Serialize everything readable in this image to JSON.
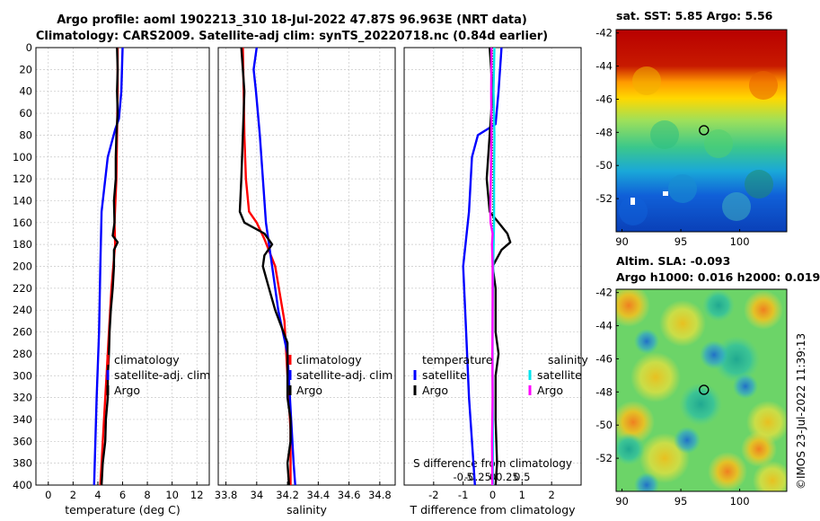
{
  "header": {
    "title_line1": "Argo profile: aoml 1902213_310 18-Jul-2022 47.87S 96.963E (NRT data)",
    "title_line2": "Climatology: CARS2009. Satellite-adj clim: synTS_20220718.nc (0.84d earlier)"
  },
  "maps": {
    "sst_title": "sat. SST: 5.85 Argo: 5.56",
    "sla_title1": "Altim. SLA: -0.093",
    "sla_title2": "Argo h1000: 0.016 h2000: 0.019",
    "stamp": "©IMOS 23-Jul-2022 11:39:13",
    "x_ticks": [
      "90",
      "95",
      "100"
    ],
    "y_ticks": [
      "-42",
      "-44",
      "-46",
      "-48",
      "-50",
      "-52"
    ],
    "marker_lon": 96.963,
    "marker_lat": -47.87
  },
  "chart_data": [
    {
      "type": "line",
      "panel": "temperature",
      "xlabel": "temperature (deg C)",
      "ylabel": "",
      "xlim": [
        -1,
        13
      ],
      "ylim": [
        400,
        0
      ],
      "x_ticks": [
        "0",
        "2",
        "4",
        "6",
        "8",
        "10",
        "12"
      ],
      "y_ticks": [
        "0",
        "20",
        "40",
        "60",
        "80",
        "100",
        "120",
        "140",
        "160",
        "180",
        "200",
        "220",
        "240",
        "260",
        "280",
        "300",
        "320",
        "340",
        "360",
        "380",
        "400"
      ],
      "grid": true,
      "legend": [
        "climatology",
        "satellite-adj. clim",
        "Argo"
      ],
      "series": [
        {
          "name": "climatology",
          "color": "#ff0000",
          "points": [
            [
              5.6,
              0
            ],
            [
              5.6,
              40
            ],
            [
              5.55,
              80
            ],
            [
              5.5,
              120
            ],
            [
              5.35,
              160
            ],
            [
              5.4,
              180
            ],
            [
              5.1,
              220
            ],
            [
              4.9,
              260
            ],
            [
              4.7,
              300
            ],
            [
              4.5,
              340
            ],
            [
              4.3,
              380
            ],
            [
              4.2,
              400
            ]
          ]
        },
        {
          "name": "satellite-adj. clim",
          "color": "#0000ff",
          "points": [
            [
              6.0,
              0
            ],
            [
              5.9,
              40
            ],
            [
              5.7,
              65
            ],
            [
              5.4,
              75
            ],
            [
              4.8,
              100
            ],
            [
              4.3,
              150
            ],
            [
              4.2,
              200
            ],
            [
              4.1,
              260
            ],
            [
              3.9,
              320
            ],
            [
              3.8,
              360
            ],
            [
              3.7,
              400
            ]
          ]
        },
        {
          "name": "Argo",
          "color": "#000000",
          "points": [
            [
              5.55,
              0
            ],
            [
              5.6,
              20
            ],
            [
              5.55,
              40
            ],
            [
              5.6,
              60
            ],
            [
              5.5,
              80
            ],
            [
              5.45,
              100
            ],
            [
              5.45,
              120
            ],
            [
              5.3,
              140
            ],
            [
              5.35,
              160
            ],
            [
              5.2,
              172
            ],
            [
              5.6,
              178
            ],
            [
              5.3,
              185
            ],
            [
              5.3,
              200
            ],
            [
              5.2,
              220
            ],
            [
              5.05,
              240
            ],
            [
              4.95,
              260
            ],
            [
              4.9,
              280
            ],
            [
              4.8,
              300
            ],
            [
              4.8,
              320
            ],
            [
              4.65,
              340
            ],
            [
              4.6,
              360
            ],
            [
              4.4,
              380
            ],
            [
              4.3,
              400
            ]
          ]
        }
      ]
    },
    {
      "type": "line",
      "panel": "salinity",
      "xlabel": "salinity",
      "xlim": [
        33.75,
        34.9
      ],
      "ylim": [
        400,
        0
      ],
      "x_ticks": [
        "33.8",
        "34",
        "34.2",
        "34.4",
        "34.6",
        "34.8"
      ],
      "grid": true,
      "legend": [
        "climatology",
        "satellite-adj. clim",
        "Argo"
      ],
      "series": [
        {
          "name": "climatology",
          "color": "#ff0000",
          "points": [
            [
              33.91,
              0
            ],
            [
              33.915,
              40
            ],
            [
              33.92,
              80
            ],
            [
              33.93,
              120
            ],
            [
              33.95,
              150
            ],
            [
              34.0,
              160
            ],
            [
              34.05,
              175
            ],
            [
              34.12,
              200
            ],
            [
              34.18,
              250
            ],
            [
              34.2,
              300
            ],
            [
              34.22,
              350
            ],
            [
              34.22,
              400
            ]
          ]
        },
        {
          "name": "satellite-adj. clim",
          "color": "#0000ff",
          "points": [
            [
              34.0,
              0
            ],
            [
              33.98,
              20
            ],
            [
              33.995,
              40
            ],
            [
              34.02,
              80
            ],
            [
              34.04,
              120
            ],
            [
              34.06,
              160
            ],
            [
              34.1,
              200
            ],
            [
              34.14,
              240
            ],
            [
              34.2,
              280
            ],
            [
              34.22,
              330
            ],
            [
              34.24,
              380
            ],
            [
              34.25,
              400
            ]
          ]
        },
        {
          "name": "Argo",
          "color": "#000000",
          "points": [
            [
              33.9,
              0
            ],
            [
              33.92,
              40
            ],
            [
              33.91,
              80
            ],
            [
              33.9,
              120
            ],
            [
              33.89,
              150
            ],
            [
              33.92,
              160
            ],
            [
              34.05,
              170
            ],
            [
              34.1,
              180
            ],
            [
              34.05,
              190
            ],
            [
              34.04,
              200
            ],
            [
              34.08,
              220
            ],
            [
              34.12,
              240
            ],
            [
              34.2,
              270
            ],
            [
              34.2,
              300
            ],
            [
              34.2,
              320
            ],
            [
              34.22,
              340
            ],
            [
              34.22,
              360
            ],
            [
              34.2,
              380
            ],
            [
              34.21,
              400
            ]
          ]
        }
      ]
    },
    {
      "type": "line",
      "panel": "difference",
      "xlabel": "T difference from climatology",
      "xlabel_top": "S difference from climatology",
      "xlim": [
        -3,
        3
      ],
      "ylim": [
        400,
        0
      ],
      "x_ticks": [
        "-2",
        "-1",
        "0",
        "1",
        "2"
      ],
      "s_ticks": [
        "-0.5",
        "-0.25",
        "0",
        "0.25",
        "0.5"
      ],
      "grid": true,
      "legend_temperature_title": "temperature",
      "legend_salinity_title": "salinity",
      "legend_temperature": [
        "satellite",
        "Argo"
      ],
      "legend_salinity": [
        "satellite",
        "Argo"
      ],
      "series": [
        {
          "name": "temperature satellite",
          "color": "#0000ff",
          "points": [
            [
              0.3,
              0
            ],
            [
              0.2,
              40
            ],
            [
              0.1,
              70
            ],
            [
              -0.5,
              80
            ],
            [
              -0.7,
              100
            ],
            [
              -0.8,
              150
            ],
            [
              -1.0,
              200
            ],
            [
              -0.9,
              260
            ],
            [
              -0.8,
              320
            ],
            [
              -0.7,
              360
            ],
            [
              -0.6,
              400
            ]
          ]
        },
        {
          "name": "temperature Argo",
          "color": "#000000",
          "points": [
            [
              -0.1,
              0
            ],
            [
              0.0,
              40
            ],
            [
              -0.1,
              80
            ],
            [
              -0.2,
              120
            ],
            [
              -0.1,
              150
            ],
            [
              0.2,
              160
            ],
            [
              0.5,
              170
            ],
            [
              0.6,
              178
            ],
            [
              0.3,
              185
            ],
            [
              0.0,
              200
            ],
            [
              0.1,
              220
            ],
            [
              0.1,
              260
            ],
            [
              0.2,
              280
            ],
            [
              0.1,
              300
            ],
            [
              0.1,
              340
            ],
            [
              0.15,
              380
            ],
            [
              0.1,
              400
            ]
          ]
        },
        {
          "name": "salinity satellite",
          "color": "#00e5ee",
          "points": [
            [
              0.06,
              0
            ],
            [
              0.03,
              40
            ],
            [
              0.06,
              80
            ],
            [
              0.05,
              120
            ],
            [
              0.05,
              160
            ],
            [
              0.02,
              200
            ],
            [
              0.0,
              240
            ],
            [
              0.0,
              300
            ],
            [
              0.01,
              350
            ],
            [
              0.01,
              400
            ]
          ]
        },
        {
          "name": "salinity Argo",
          "color": "#ff00ff",
          "points": [
            [
              -0.04,
              0
            ],
            [
              -0.05,
              40
            ],
            [
              -0.04,
              80
            ],
            [
              -0.06,
              120
            ],
            [
              -0.08,
              150
            ],
            [
              -0.07,
              160
            ],
            [
              0.0,
              170
            ],
            [
              -0.02,
              180
            ],
            [
              0.0,
              200
            ],
            [
              0.0,
              240
            ],
            [
              -0.01,
              280
            ],
            [
              0.0,
              320
            ],
            [
              -0.02,
              360
            ],
            [
              -0.01,
              400
            ]
          ]
        }
      ]
    }
  ]
}
